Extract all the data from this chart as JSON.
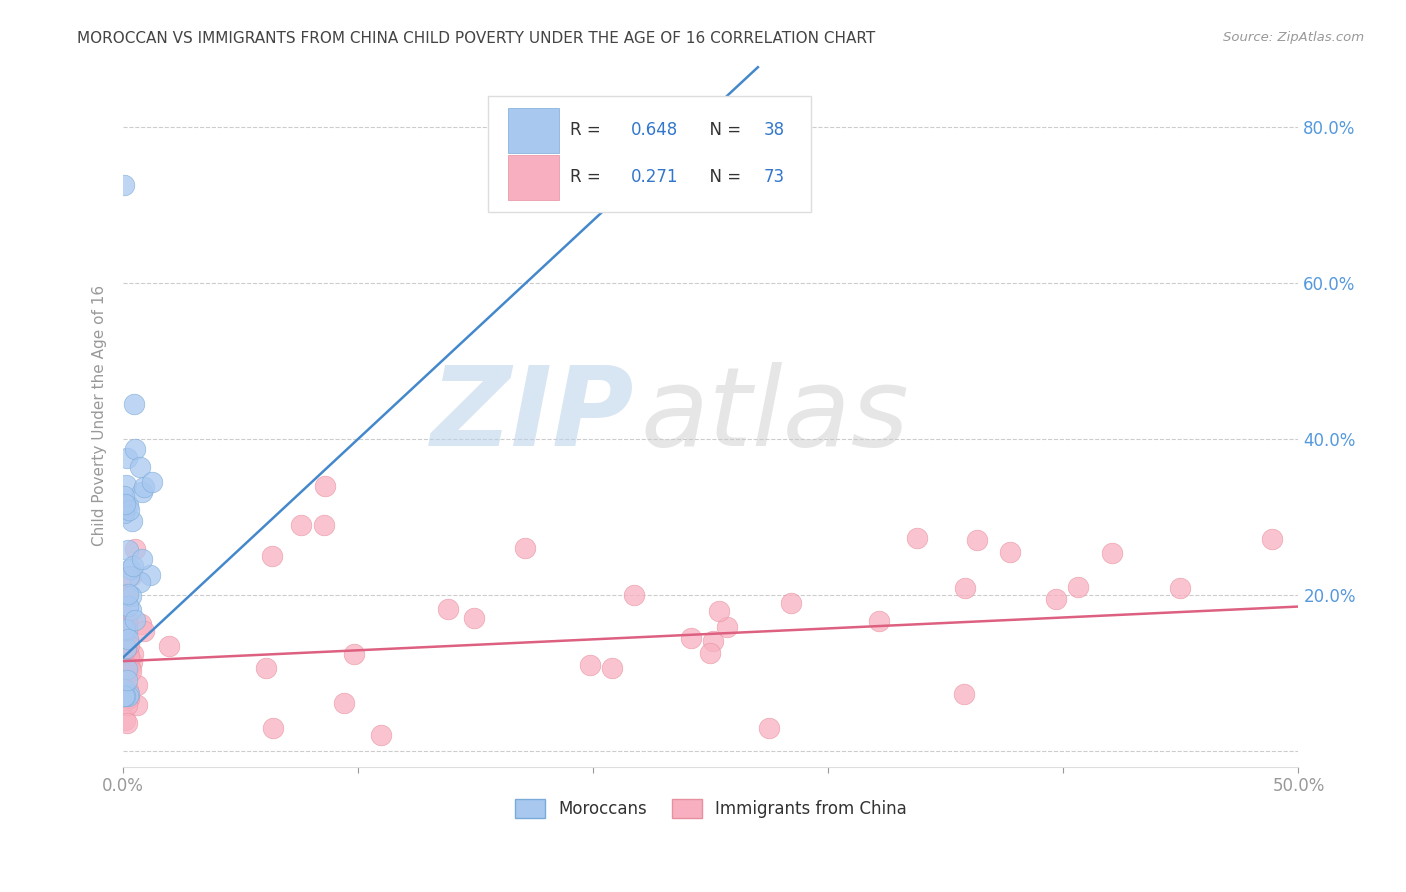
{
  "title": "MOROCCAN VS IMMIGRANTS FROM CHINA CHILD POVERTY UNDER THE AGE OF 16 CORRELATION CHART",
  "source": "Source: ZipAtlas.com",
  "ylabel": "Child Poverty Under the Age of 16",
  "xlim": [
    0,
    0.5
  ],
  "ylim": [
    -0.02,
    0.88
  ],
  "blue_color": "#A8C8F0",
  "blue_edge": "#7AAAD8",
  "pink_color": "#F8B0C0",
  "pink_edge": "#E890A0",
  "line_blue": "#4488CC",
  "line_pink": "#DD6080",
  "R_blue": 0.648,
  "N_blue": 38,
  "R_pink": 0.271,
  "N_pink": 73,
  "watermark_zip": "ZIP",
  "watermark_atlas": "atlas",
  "grid_color": "#CCCCCC",
  "bg_color": "#FFFFFF",
  "title_color": "#444444",
  "axis_color": "#999999",
  "right_axis_color": "#5599DD",
  "legend_text_color": "#3377CC",
  "legend_R_color": "#222222"
}
